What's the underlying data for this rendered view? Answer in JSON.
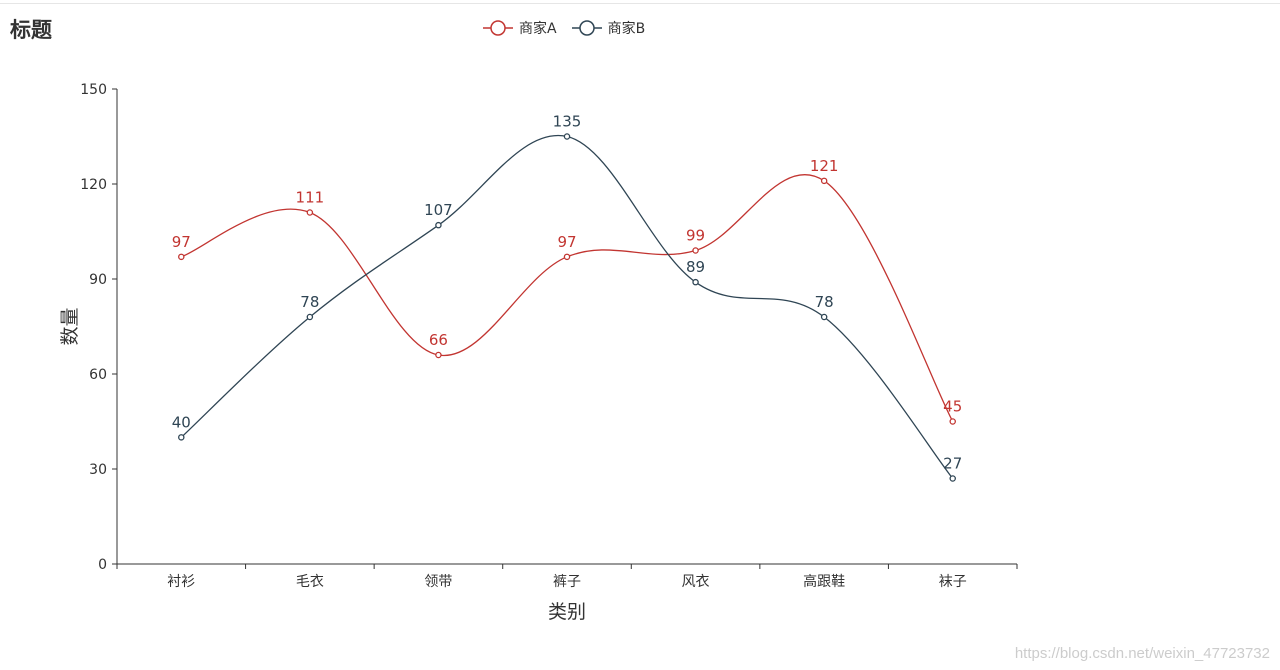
{
  "title": "标题",
  "watermark": "https://blog.csdn.net/weixin_47723732",
  "chart_data": {
    "type": "line",
    "smooth": true,
    "categories": [
      "衬衫",
      "毛衣",
      "领带",
      "裤子",
      "风衣",
      "高跟鞋",
      "袜子"
    ],
    "series": [
      {
        "name": "商家A",
        "color": "#c23531",
        "values": [
          97,
          111,
          66,
          97,
          99,
          121,
          45
        ]
      },
      {
        "name": "商家B",
        "color": "#2f4554",
        "values": [
          40,
          78,
          107,
          135,
          89,
          78,
          27
        ]
      }
    ],
    "xlabel": "类别",
    "ylabel": "数量",
    "ylim": [
      0,
      150
    ],
    "yticks": [
      0,
      30,
      60,
      90,
      120,
      150
    ],
    "grid": false,
    "legend_position": "top-center",
    "data_labels": true
  }
}
